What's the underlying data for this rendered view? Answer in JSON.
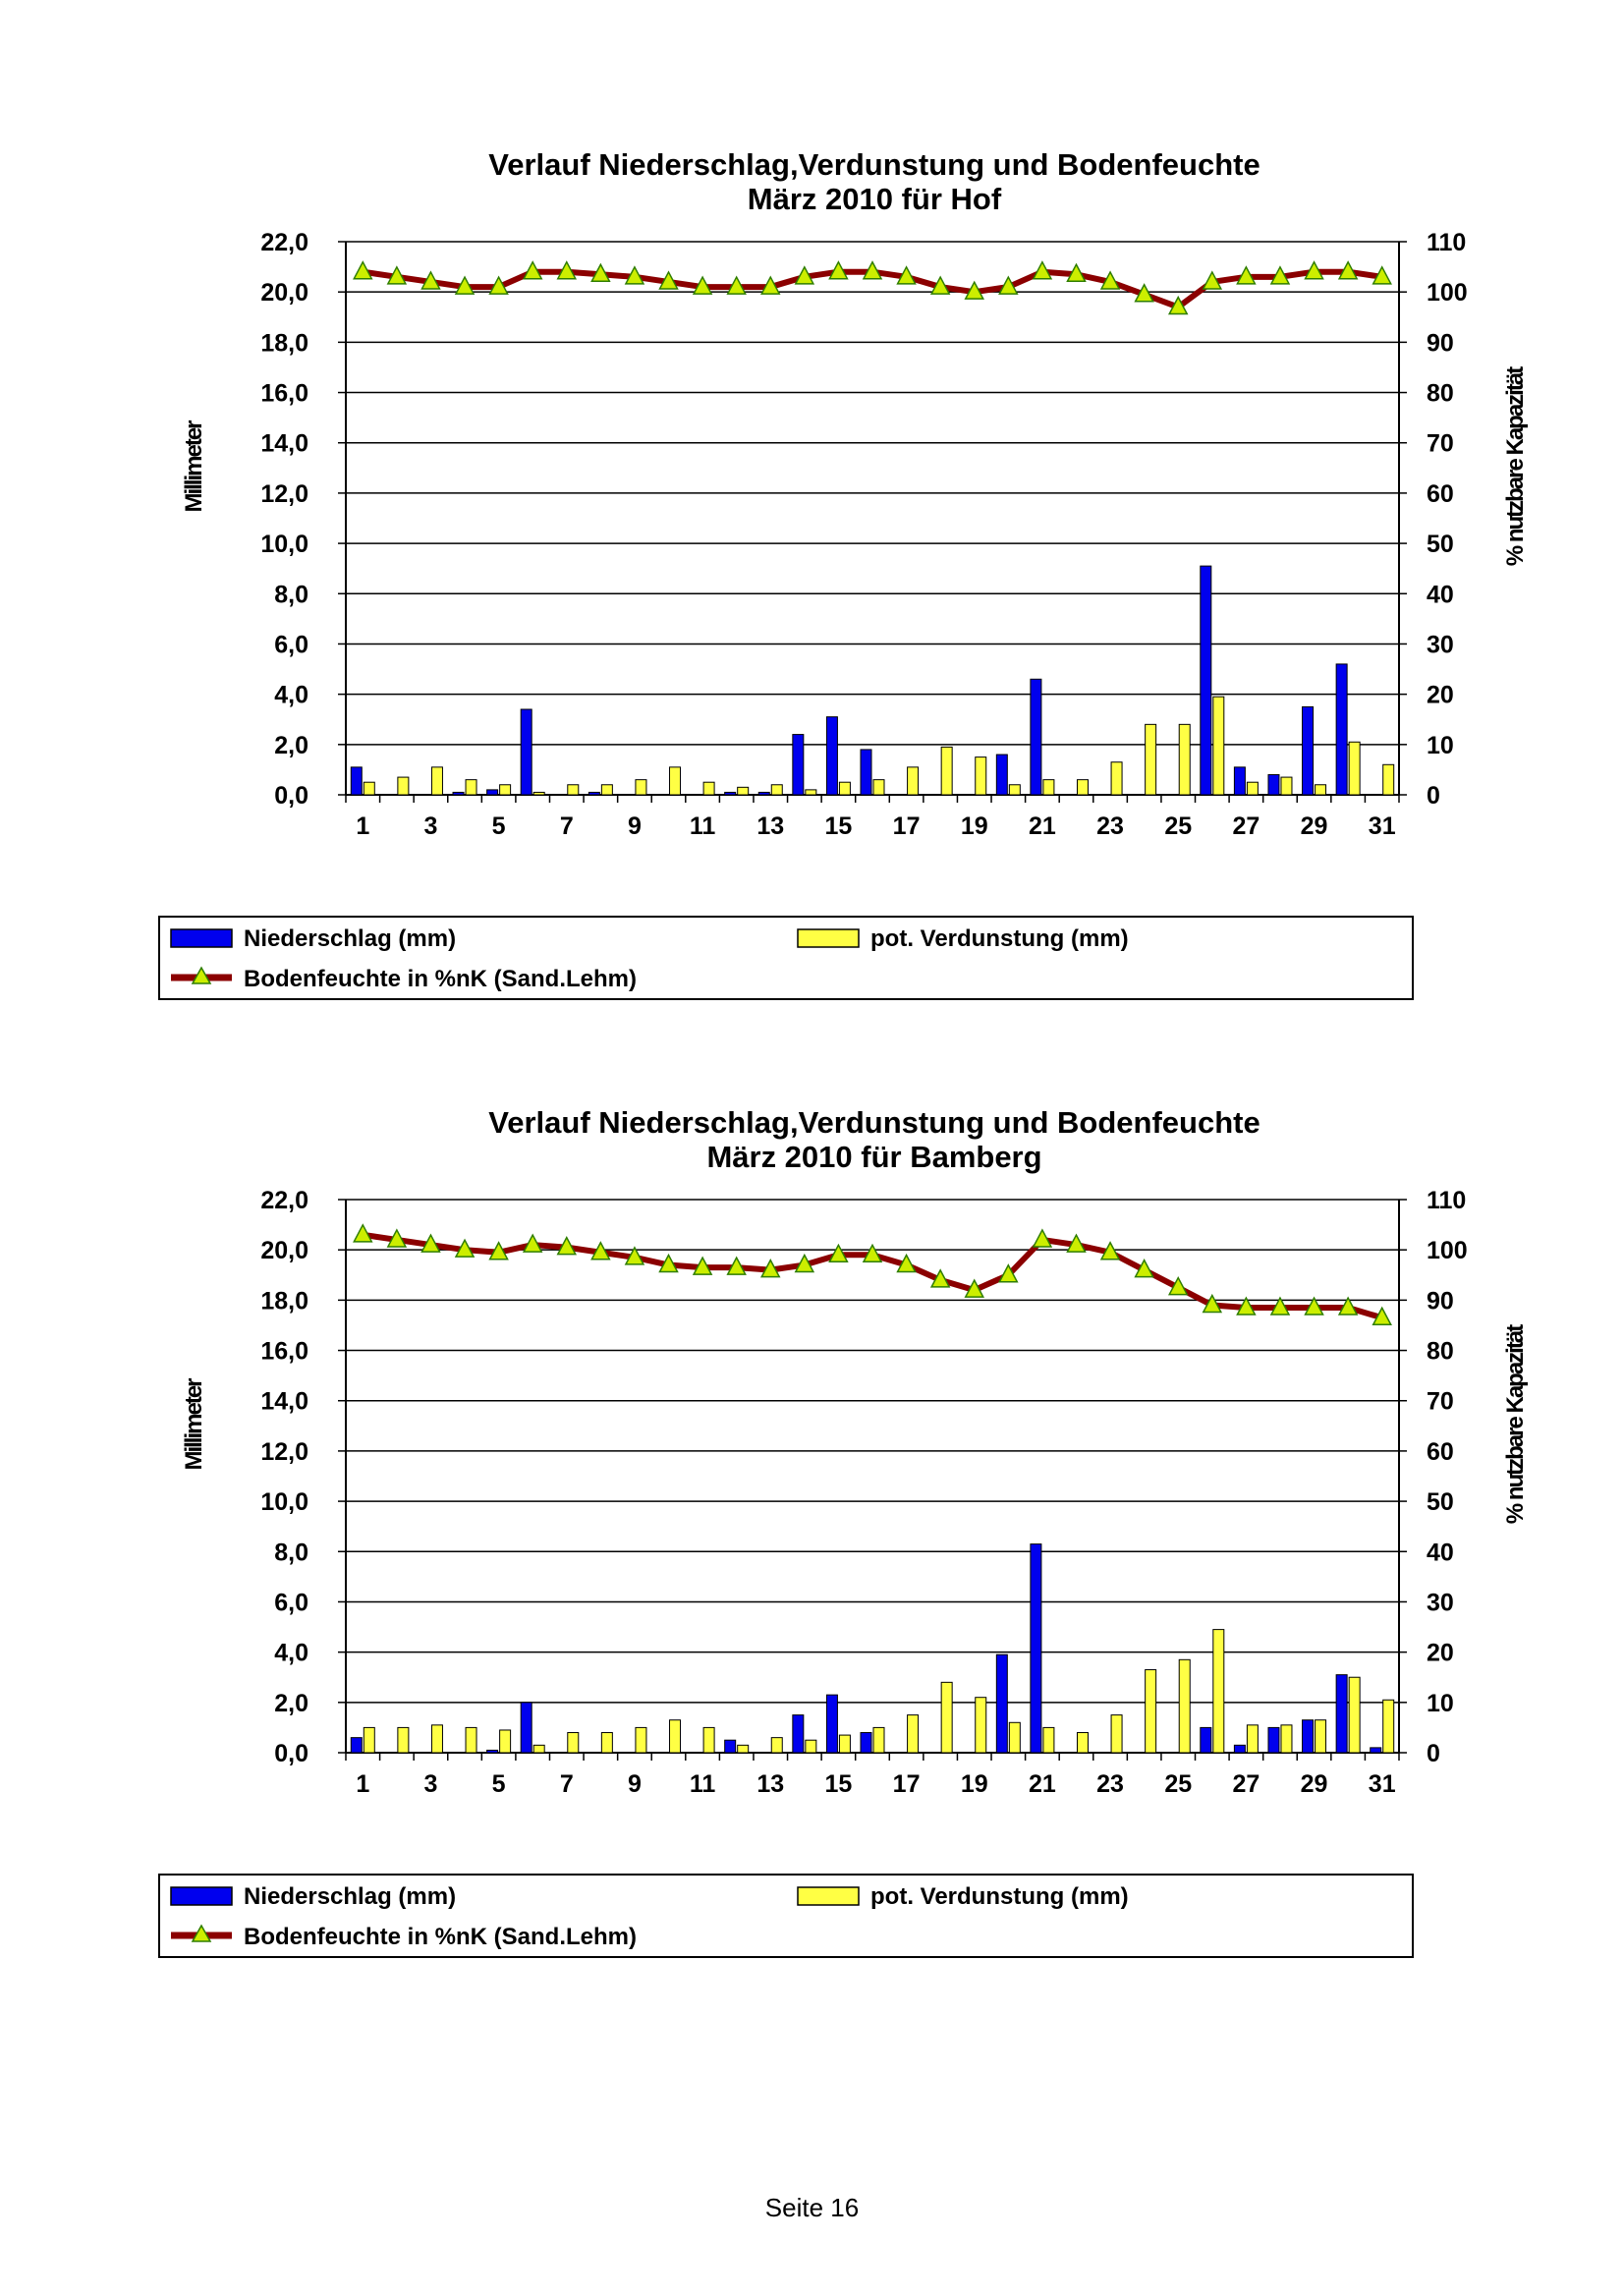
{
  "colors": {
    "precip": "#0000EE",
    "evap": "#FFFF44",
    "soil_line": "#8B0000",
    "soil_marker": "#CCEE00",
    "marker_edge": "#2E7D00",
    "grid": "#000000"
  },
  "footer": {
    "page_label": "Seite 16"
  },
  "charts": [
    {
      "title_line1": "Verlauf Niederschlag,Verdunstung und Bodenfeuchte",
      "title_line2": "März 2010 für Hof",
      "ylabel_left": "Millimeter",
      "ylabel_right": "% nutzbare Kapazität",
      "left_ticks": [
        "22,0",
        "20,0",
        "18,0",
        "16,0",
        "14,0",
        "12,0",
        "10,0",
        "8,0",
        "6,0",
        "4,0",
        "2,0",
        "0,0"
      ],
      "right_ticks": [
        "110",
        "100",
        "90",
        "80",
        "70",
        "60",
        "50",
        "40",
        "30",
        "20",
        "10",
        "0"
      ],
      "x_ticks": [
        "1",
        "3",
        "5",
        "7",
        "9",
        "11",
        "13",
        "15",
        "17",
        "19",
        "21",
        "23",
        "25",
        "27",
        "29",
        "31"
      ],
      "legend": {
        "precip": "Niederschlag (mm)",
        "evap": "pot. Verdunstung (mm)",
        "soil": "Bodenfeuchte in %nK (Sand.Lehm)"
      }
    },
    {
      "title_line1": "Verlauf Niederschlag,Verdunstung und Bodenfeuchte",
      "title_line2": "März 2010 für Bamberg",
      "ylabel_left": "Millimeter",
      "ylabel_right": "% nutzbare Kapazität",
      "left_ticks": [
        "22,0",
        "20,0",
        "18,0",
        "16,0",
        "14,0",
        "12,0",
        "10,0",
        "8,0",
        "6,0",
        "4,0",
        "2,0",
        "0,0"
      ],
      "right_ticks": [
        "110",
        "100",
        "90",
        "80",
        "70",
        "60",
        "50",
        "40",
        "30",
        "20",
        "10",
        "0"
      ],
      "x_ticks": [
        "1",
        "3",
        "5",
        "7",
        "9",
        "11",
        "13",
        "15",
        "17",
        "19",
        "21",
        "23",
        "25",
        "27",
        "29",
        "31"
      ],
      "legend": {
        "precip": "Niederschlag (mm)",
        "evap": "pot. Verdunstung (mm)",
        "soil": "Bodenfeuchte in %nK (Sand.Lehm)"
      }
    }
  ],
  "chart_data": [
    {
      "type": "bar",
      "title": "Verlauf Niederschlag,Verdunstung und Bodenfeuchte März 2010 für Hof",
      "xlabel": "",
      "ylabel": "Millimeter",
      "y2label": "% nutzbare Kapazität",
      "ylim": [
        0,
        22
      ],
      "y2lim": [
        0,
        110
      ],
      "grid": true,
      "legend_position": "bottom",
      "x": [
        1,
        2,
        3,
        4,
        5,
        6,
        7,
        8,
        9,
        10,
        11,
        12,
        13,
        14,
        15,
        16,
        17,
        18,
        19,
        20,
        21,
        22,
        23,
        24,
        25,
        26,
        27,
        28,
        29,
        30,
        31
      ],
      "series": [
        {
          "name": "Niederschlag (mm)",
          "type": "bar",
          "axis": "left",
          "values": [
            1.1,
            0,
            0,
            0.1,
            0.2,
            3.4,
            0,
            0.1,
            0,
            0,
            0,
            0.1,
            0.1,
            2.4,
            3.1,
            1.8,
            0,
            0,
            0,
            1.6,
            4.6,
            0,
            0,
            0,
            0,
            9.1,
            1.1,
            0.8,
            3.5,
            5.2,
            0
          ]
        },
        {
          "name": "pot. Verdunstung (mm)",
          "type": "bar",
          "axis": "left",
          "values": [
            0.5,
            0.7,
            1.1,
            0.6,
            0.4,
            0.1,
            0.4,
            0.4,
            0.6,
            1.1,
            0.5,
            0.3,
            0.4,
            0.2,
            0.5,
            0.6,
            1.1,
            1.9,
            1.5,
            0.4,
            0.6,
            0.6,
            1.3,
            2.8,
            2.8,
            3.9,
            0.5,
            0.7,
            0.4,
            2.1,
            1.2
          ]
        },
        {
          "name": "Bodenfeuchte in %nK (Sand.Lehm)",
          "type": "line",
          "axis": "right",
          "values": [
            104,
            103,
            102,
            101,
            101,
            104,
            104,
            103.5,
            103,
            102,
            101,
            101,
            101,
            103,
            104,
            104,
            103,
            101,
            100,
            101,
            104,
            103.5,
            102,
            99.5,
            97,
            102,
            103,
            103,
            104,
            104,
            103
          ]
        }
      ]
    },
    {
      "type": "bar",
      "title": "Verlauf Niederschlag,Verdunstung und Bodenfeuchte März 2010 für Bamberg",
      "xlabel": "",
      "ylabel": "Millimeter",
      "y2label": "% nutzbare Kapazität",
      "ylim": [
        0,
        22
      ],
      "y2lim": [
        0,
        110
      ],
      "grid": true,
      "legend_position": "bottom",
      "x": [
        1,
        2,
        3,
        4,
        5,
        6,
        7,
        8,
        9,
        10,
        11,
        12,
        13,
        14,
        15,
        16,
        17,
        18,
        19,
        20,
        21,
        22,
        23,
        24,
        25,
        26,
        27,
        28,
        29,
        30,
        31
      ],
      "series": [
        {
          "name": "Niederschlag (mm)",
          "type": "bar",
          "axis": "left",
          "values": [
            0.6,
            0,
            0,
            0,
            0.1,
            2.0,
            0,
            0,
            0,
            0,
            0,
            0.5,
            0,
            1.5,
            2.3,
            0.8,
            0,
            0,
            0,
            3.9,
            8.3,
            0,
            0,
            0,
            0,
            1.0,
            0.3,
            1.0,
            1.3,
            3.1,
            0.2
          ]
        },
        {
          "name": "pot. Verdunstung (mm)",
          "type": "bar",
          "axis": "left",
          "values": [
            1.0,
            1.0,
            1.1,
            1.0,
            0.9,
            0.3,
            0.8,
            0.8,
            1.0,
            1.3,
            1.0,
            0.3,
            0.6,
            0.5,
            0.7,
            1.0,
            1.5,
            2.8,
            2.2,
            1.2,
            1.0,
            0.8,
            1.5,
            3.3,
            3.7,
            4.9,
            1.1,
            1.1,
            1.3,
            3.0,
            2.1
          ]
        },
        {
          "name": "Bodenfeuchte in %nK (Sand.Lehm)",
          "type": "line",
          "axis": "right",
          "values": [
            103,
            102,
            101,
            100,
            99.5,
            101,
            100.5,
            99.5,
            98.5,
            97,
            96.5,
            96.5,
            96,
            97,
            99,
            99,
            97,
            94,
            92,
            95,
            102,
            101,
            99.5,
            96,
            92.5,
            89,
            88.5,
            88.5,
            88.5,
            88.5,
            86.5
          ]
        }
      ]
    }
  ]
}
